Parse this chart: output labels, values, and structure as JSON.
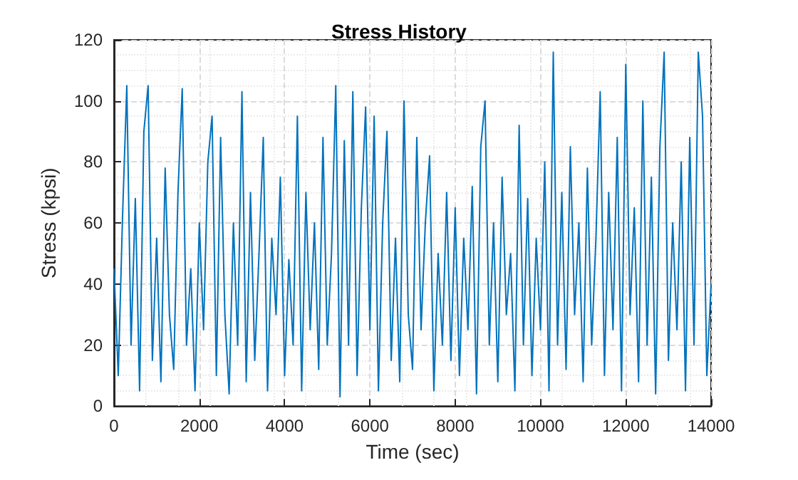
{
  "chart_data": {
    "type": "line",
    "title": "Stress History",
    "xlabel": "Time (sec)",
    "ylabel": "Stress (kpsi)",
    "x": [
      0,
      100,
      200,
      300,
      400,
      500,
      600,
      700,
      800,
      900,
      1000,
      1100,
      1200,
      1300,
      1400,
      1500,
      1600,
      1700,
      1800,
      1900,
      2000,
      2100,
      2200,
      2300,
      2400,
      2500,
      2600,
      2700,
      2800,
      2900,
      3000,
      3100,
      3200,
      3300,
      3400,
      3500,
      3600,
      3700,
      3800,
      3900,
      4000,
      4100,
      4200,
      4300,
      4400,
      4500,
      4600,
      4700,
      4800,
      4900,
      5000,
      5100,
      5200,
      5300,
      5400,
      5500,
      5600,
      5700,
      5800,
      5900,
      6000,
      6100,
      6200,
      6300,
      6400,
      6500,
      6600,
      6700,
      6800,
      6900,
      7000,
      7100,
      7200,
      7300,
      7400,
      7500,
      7600,
      7700,
      7800,
      7900,
      8000,
      8100,
      8200,
      8300,
      8400,
      8500,
      8600,
      8700,
      8800,
      8900,
      9000,
      9100,
      9200,
      9300,
      9400,
      9500,
      9600,
      9700,
      9800,
      9900,
      10000,
      10100,
      10200,
      10300,
      10400,
      10500,
      10600,
      10700,
      10800,
      10900,
      11000,
      11100,
      11200,
      11300,
      11400,
      11500,
      11600,
      11700,
      11800,
      11900,
      12000,
      12100,
      12200,
      12300,
      12400,
      12500,
      12600,
      12700,
      12800,
      12900,
      13000,
      13100,
      13200,
      13300,
      13400,
      13500,
      13600,
      13700,
      13800,
      13900,
      14000
    ],
    "series": [
      {
        "color": "#0072bd",
        "values": [
          45,
          10,
          62,
          105,
          20,
          68,
          5,
          90,
          105,
          15,
          55,
          8,
          78,
          30,
          12,
          70,
          104,
          20,
          45,
          5,
          60,
          25,
          80,
          95,
          10,
          88,
          30,
          4,
          60,
          20,
          103,
          8,
          70,
          15,
          50,
          88,
          5,
          55,
          30,
          75,
          10,
          48,
          20,
          95,
          5,
          70,
          25,
          60,
          12,
          88,
          20,
          50,
          105,
          3,
          87,
          20,
          103,
          10,
          65,
          98,
          25,
          95,
          5,
          60,
          90,
          15,
          55,
          8,
          100,
          30,
          12,
          88,
          25,
          60,
          82,
          5,
          50,
          20,
          70,
          15,
          65,
          10,
          55,
          25,
          72,
          4,
          85,
          100,
          20,
          60,
          8,
          75,
          30,
          50,
          5,
          92,
          20,
          68,
          10,
          55,
          25,
          80,
          5,
          116,
          20,
          70,
          12,
          85,
          30,
          60,
          8,
          78,
          20,
          55,
          103,
          10,
          70,
          25,
          88,
          5,
          112,
          30,
          65,
          8,
          100,
          20,
          75,
          4,
          85,
          116,
          15,
          60,
          25,
          80,
          5,
          88,
          20,
          116,
          95,
          10,
          40
        ]
      }
    ],
    "xlim": [
      0,
      14000
    ],
    "ylim": [
      0,
      120
    ],
    "xticks": [
      0,
      2000,
      4000,
      6000,
      8000,
      10000,
      12000,
      14000
    ],
    "yticks": [
      0,
      20,
      40,
      60,
      80,
      100,
      120
    ],
    "grid": true,
    "marker": "none",
    "line_style": "solid"
  }
}
